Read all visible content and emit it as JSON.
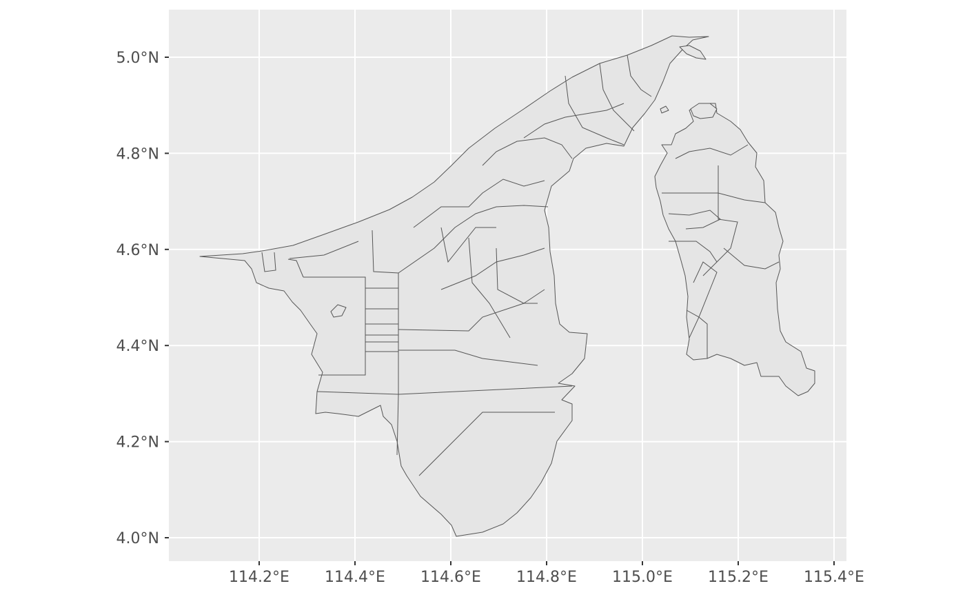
{
  "map": {
    "type": "choropleth-outline",
    "region": "Brunei",
    "x_axis": {
      "ticks": [
        {
          "value": 114.2,
          "label": "114.2°E"
        },
        {
          "value": 114.4,
          "label": "114.4°E"
        },
        {
          "value": 114.6,
          "label": "114.6°E"
        },
        {
          "value": 114.8,
          "label": "114.8°E"
        },
        {
          "value": 115.0,
          "label": "115.0°E"
        },
        {
          "value": 115.2,
          "label": "115.2°E"
        },
        {
          "value": 115.4,
          "label": "115.4°E"
        }
      ]
    },
    "y_axis": {
      "ticks": [
        {
          "value": 4.0,
          "label": "4.0°N"
        },
        {
          "value": 4.2,
          "label": "4.2°N"
        },
        {
          "value": 4.4,
          "label": "4.4°N"
        },
        {
          "value": 4.6,
          "label": "4.6°N"
        },
        {
          "value": 4.8,
          "label": "4.8°N"
        },
        {
          "value": 5.0,
          "label": "5.0°N"
        }
      ]
    },
    "colors": {
      "panel_background": "#ebebeb",
      "grid": "#ffffff",
      "polygon_fill": "#e5e5e5",
      "polygon_stroke": "#555555",
      "tick_label": "#4d4d4d"
    }
  }
}
